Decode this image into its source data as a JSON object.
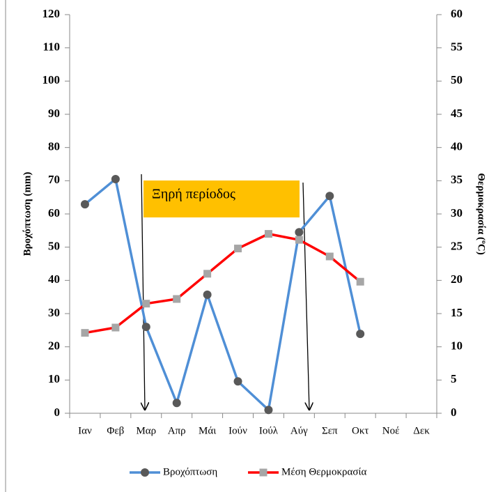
{
  "chart_data": {
    "type": "line",
    "categories": [
      "Ιαν",
      "Φεβ",
      "Μαρ",
      "Απρ",
      "Μάι",
      "Ιούν",
      "Ιούλ",
      "Αύγ",
      "Σεπ",
      "Οκτ",
      "Νοέ",
      "Δεκ"
    ],
    "series": [
      {
        "name": "Βροχόπτωση",
        "color": "#4f8fd6",
        "marker_color": "#595959",
        "values": [
          62.9,
          70.5,
          26.0,
          3.1,
          35.7,
          9.6,
          1.0,
          54.5,
          65.4,
          23.9,
          null,
          null
        ]
      },
      {
        "name": "Μέση Θερμοκρασία",
        "color": "#ff0000",
        "marker_color": "#a6a6a6",
        "axis": "y2",
        "values": [
          12.1,
          12.9,
          16.5,
          17.2,
          21.0,
          24.8,
          27.0,
          26.1,
          23.6,
          19.8,
          null,
          null
        ]
      }
    ],
    "ylabel": "Βροχόπτωση (mm)",
    "y2label": "Θερμοκρασία (ºC)",
    "ylim": [
      0,
      120
    ],
    "yticks": [
      0,
      10,
      20,
      30,
      40,
      50,
      60,
      70,
      80,
      90,
      100,
      110,
      120
    ],
    "y2lim": [
      0,
      60
    ],
    "y2ticks": [
      0,
      5,
      10,
      15,
      20,
      25,
      30,
      35,
      40,
      45,
      50,
      55,
      60
    ],
    "annotations": [
      "Ξηρή περίοδος"
    ],
    "grid": false,
    "legend": "bottom"
  }
}
